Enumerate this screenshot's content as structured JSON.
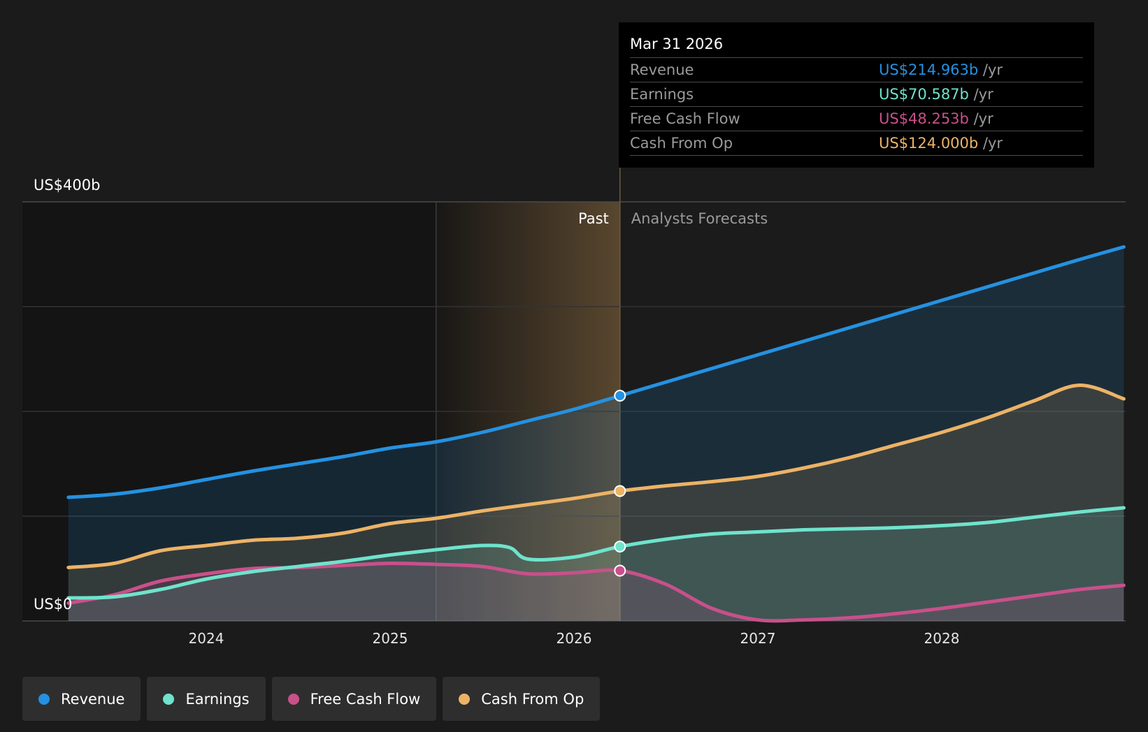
{
  "chart_data": {
    "type": "area",
    "y_axis": {
      "min": 0,
      "max": 400,
      "top_label": "US$400b",
      "bottom_label": "US$0",
      "gridlines": [
        0,
        100,
        200,
        300,
        400
      ]
    },
    "x_axis": {
      "min": 2023.25,
      "max": 2028.99,
      "ticks": [
        2024,
        2025,
        2026,
        2027,
        2028
      ]
    },
    "past_label": "Past",
    "forecast_label": "Analysts Forecasts",
    "present": 2026.25,
    "highlight_start": 2025.25,
    "colors": {
      "Revenue": "#2591e0",
      "Earnings": "#6fe3cc",
      "Free Cash Flow": "#c8508b",
      "Cash From Op": "#ecb366"
    },
    "series": [
      {
        "name": "Revenue",
        "points": [
          [
            2023.25,
            118
          ],
          [
            2023.5,
            121
          ],
          [
            2023.75,
            127
          ],
          [
            2024.0,
            135
          ],
          [
            2024.25,
            143
          ],
          [
            2024.5,
            150
          ],
          [
            2024.75,
            157
          ],
          [
            2025.0,
            165
          ],
          [
            2025.25,
            171
          ],
          [
            2025.5,
            180
          ],
          [
            2025.75,
            191
          ],
          [
            2026.0,
            202
          ],
          [
            2026.25,
            215
          ],
          [
            2026.5,
            228
          ],
          [
            2026.75,
            241
          ],
          [
            2027.0,
            254
          ],
          [
            2027.25,
            267
          ],
          [
            2027.5,
            280
          ],
          [
            2027.75,
            293
          ],
          [
            2028.0,
            306
          ],
          [
            2028.25,
            319
          ],
          [
            2028.5,
            332
          ],
          [
            2028.75,
            345
          ],
          [
            2028.99,
            357
          ]
        ]
      },
      {
        "name": "Earnings",
        "points": [
          [
            2023.25,
            22
          ],
          [
            2023.5,
            23
          ],
          [
            2023.75,
            30
          ],
          [
            2024.0,
            40
          ],
          [
            2024.25,
            47
          ],
          [
            2024.5,
            52
          ],
          [
            2024.75,
            57
          ],
          [
            2025.0,
            63
          ],
          [
            2025.25,
            68
          ],
          [
            2025.5,
            72
          ],
          [
            2025.65,
            70
          ],
          [
            2025.75,
            59
          ],
          [
            2026.0,
            61
          ],
          [
            2026.25,
            71
          ],
          [
            2026.5,
            78
          ],
          [
            2026.75,
            83
          ],
          [
            2027.0,
            85
          ],
          [
            2027.25,
            87
          ],
          [
            2027.5,
            88
          ],
          [
            2027.75,
            89
          ],
          [
            2028.0,
            91
          ],
          [
            2028.25,
            94
          ],
          [
            2028.5,
            99
          ],
          [
            2028.75,
            104
          ],
          [
            2028.99,
            108
          ]
        ]
      },
      {
        "name": "Free Cash Flow",
        "points": [
          [
            2023.25,
            17
          ],
          [
            2023.5,
            25
          ],
          [
            2023.75,
            38
          ],
          [
            2024.0,
            45
          ],
          [
            2024.25,
            50
          ],
          [
            2024.5,
            51
          ],
          [
            2024.75,
            53
          ],
          [
            2025.0,
            55
          ],
          [
            2025.25,
            54
          ],
          [
            2025.5,
            52
          ],
          [
            2025.75,
            45
          ],
          [
            2026.0,
            46
          ],
          [
            2026.25,
            48
          ],
          [
            2026.5,
            35
          ],
          [
            2026.75,
            12
          ],
          [
            2027.0,
            1
          ],
          [
            2027.25,
            1
          ],
          [
            2027.5,
            3
          ],
          [
            2027.75,
            7
          ],
          [
            2028.0,
            12
          ],
          [
            2028.25,
            18
          ],
          [
            2028.5,
            24
          ],
          [
            2028.75,
            30
          ],
          [
            2028.99,
            34
          ]
        ]
      },
      {
        "name": "Cash From Op",
        "points": [
          [
            2023.25,
            51
          ],
          [
            2023.5,
            55
          ],
          [
            2023.75,
            67
          ],
          [
            2024.0,
            72
          ],
          [
            2024.25,
            77
          ],
          [
            2024.5,
            79
          ],
          [
            2024.75,
            84
          ],
          [
            2025.0,
            93
          ],
          [
            2025.25,
            98
          ],
          [
            2025.5,
            105
          ],
          [
            2025.75,
            111
          ],
          [
            2026.0,
            117
          ],
          [
            2026.25,
            124
          ],
          [
            2026.5,
            129
          ],
          [
            2026.75,
            133
          ],
          [
            2027.0,
            138
          ],
          [
            2027.25,
            146
          ],
          [
            2027.5,
            156
          ],
          [
            2027.75,
            168
          ],
          [
            2028.0,
            180
          ],
          [
            2028.25,
            194
          ],
          [
            2028.5,
            210
          ],
          [
            2028.75,
            225
          ],
          [
            2028.99,
            212
          ]
        ]
      }
    ],
    "markers": [
      {
        "name": "Revenue",
        "x": 2026.25,
        "y": 215
      },
      {
        "name": "Cash From Op",
        "x": 2026.25,
        "y": 124
      },
      {
        "name": "Earnings",
        "x": 2026.25,
        "y": 71
      },
      {
        "name": "Free Cash Flow",
        "x": 2026.25,
        "y": 48
      }
    ]
  },
  "tooltip": {
    "date": "Mar 31 2026",
    "unit": "/yr",
    "rows": [
      {
        "name": "Revenue",
        "value": "US$214.963b"
      },
      {
        "name": "Earnings",
        "value": "US$70.587b"
      },
      {
        "name": "Free Cash Flow",
        "value": "US$48.253b"
      },
      {
        "name": "Cash From Op",
        "value": "US$124.000b"
      }
    ]
  },
  "legend": [
    "Revenue",
    "Earnings",
    "Free Cash Flow",
    "Cash From Op"
  ]
}
